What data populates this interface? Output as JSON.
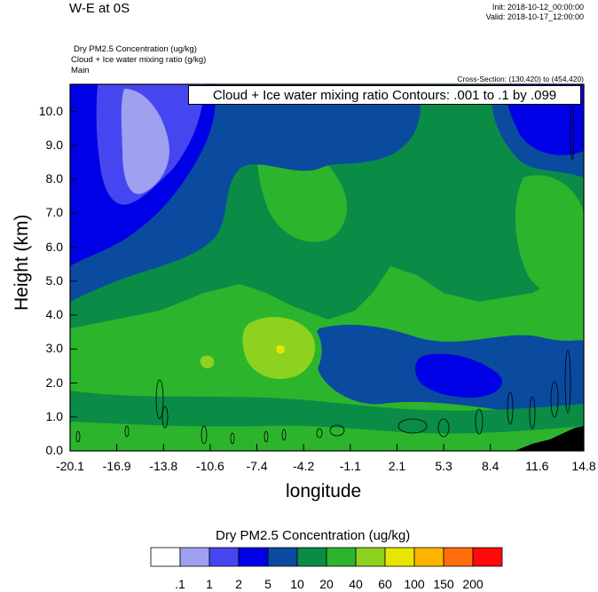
{
  "header": {
    "title": "W-E at 0S",
    "init": "Init: 2018-10-12_00:00:00",
    "valid": "Valid: 2018-10-17_12:00:00",
    "fields": [
      "Dry PM2.5 Concentration   (ug/kg)",
      "Cloud + Ice water mixing ratio   (g/kg)",
      "Main"
    ],
    "cross_section": "Cross-Section: (130,420) to (454,420)",
    "contour_label": "Cloud + Ice water mixing ratio Contours: .001 to .1 by .099"
  },
  "chart_data": {
    "type": "heatmap",
    "xlabel": "longitude",
    "ylabel": "Height (km)",
    "xlim": [
      -20.1,
      14.8
    ],
    "ylim": [
      0.0,
      10.8
    ],
    "x_ticks": [
      "-20.1",
      "-16.9",
      "-13.8",
      "-10.6",
      "-7.4",
      "-4.2",
      "-1.1",
      "2.1",
      "5.3",
      "8.4",
      "11.6",
      "14.8"
    ],
    "y_ticks": [
      "0.0",
      "1.0",
      "2.0",
      "3.0",
      "4.0",
      "5.0",
      "6.0",
      "7.0",
      "8.0",
      "9.0",
      "10.0"
    ],
    "colorbar": {
      "title": "Dry PM2.5 Concentration  (ug/kg)",
      "labels": [
        ".1",
        "1",
        "2",
        "5",
        "10",
        "20",
        "40",
        "60",
        "100",
        "150",
        "200"
      ],
      "colors": [
        "#ffffff",
        "#a0a0f0",
        "#4646f0",
        "#0000e6",
        "#0a4ba0",
        "#0a8c46",
        "#2db42d",
        "#8cd21e",
        "#e6e600",
        "#ffb400",
        "#ff6e0a",
        "#ff0a0a"
      ]
    }
  },
  "colors": {
    "c1": "#a0a0f0",
    "c2": "#4646f0",
    "c5": "#0000e6",
    "c10": "#0a4ba0",
    "c20": "#0a8c46",
    "c40": "#2db42d",
    "c60": "#8cd21e",
    "c100": "#e6e600",
    "terrain": "#000000"
  }
}
